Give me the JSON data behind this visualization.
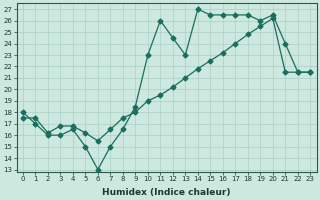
{
  "title": "",
  "xlabel": "Humidex (Indice chaleur)",
  "background_color": "#cce8df",
  "line_color": "#1a6e5e",
  "grid_color": "#aacfc5",
  "xlim": [
    -0.5,
    23.5
  ],
  "ylim": [
    12.8,
    27.5
  ],
  "yticks": [
    13,
    14,
    15,
    16,
    17,
    18,
    19,
    20,
    21,
    22,
    23,
    24,
    25,
    26,
    27
  ],
  "xticks": [
    0,
    1,
    2,
    3,
    4,
    5,
    6,
    7,
    8,
    9,
    10,
    11,
    12,
    13,
    14,
    15,
    16,
    17,
    18,
    19,
    20,
    21,
    22,
    23
  ],
  "line1_x": [
    0,
    1,
    2,
    3,
    4,
    5,
    6,
    7,
    8,
    9,
    10,
    11,
    12,
    13,
    14,
    15,
    16,
    17,
    18,
    19,
    20,
    21,
    22,
    23
  ],
  "line1_y": [
    18.0,
    17.0,
    16.0,
    16.0,
    16.5,
    15.0,
    13.0,
    15.0,
    16.5,
    18.5,
    23.0,
    26.0,
    24.5,
    23.0,
    27.0,
    26.5,
    26.5,
    26.5,
    26.5,
    26.0,
    26.5,
    24.0,
    21.5,
    21.5
  ],
  "line2_x": [
    0,
    1,
    2,
    3,
    4,
    5,
    6,
    7,
    8,
    9,
    10,
    11,
    12,
    13,
    14,
    15,
    16,
    17,
    18,
    19,
    20,
    21,
    22,
    23
  ],
  "line2_y": [
    17.5,
    17.5,
    16.2,
    16.8,
    16.8,
    16.2,
    15.5,
    16.5,
    17.5,
    18.0,
    19.0,
    19.5,
    20.2,
    21.0,
    21.8,
    22.5,
    23.2,
    24.0,
    24.8,
    25.5,
    26.2,
    21.5,
    21.5,
    21.5
  ],
  "marker_size": 2.5,
  "line_width": 0.9,
  "tick_fontsize": 5.0,
  "xlabel_fontsize": 6.5
}
